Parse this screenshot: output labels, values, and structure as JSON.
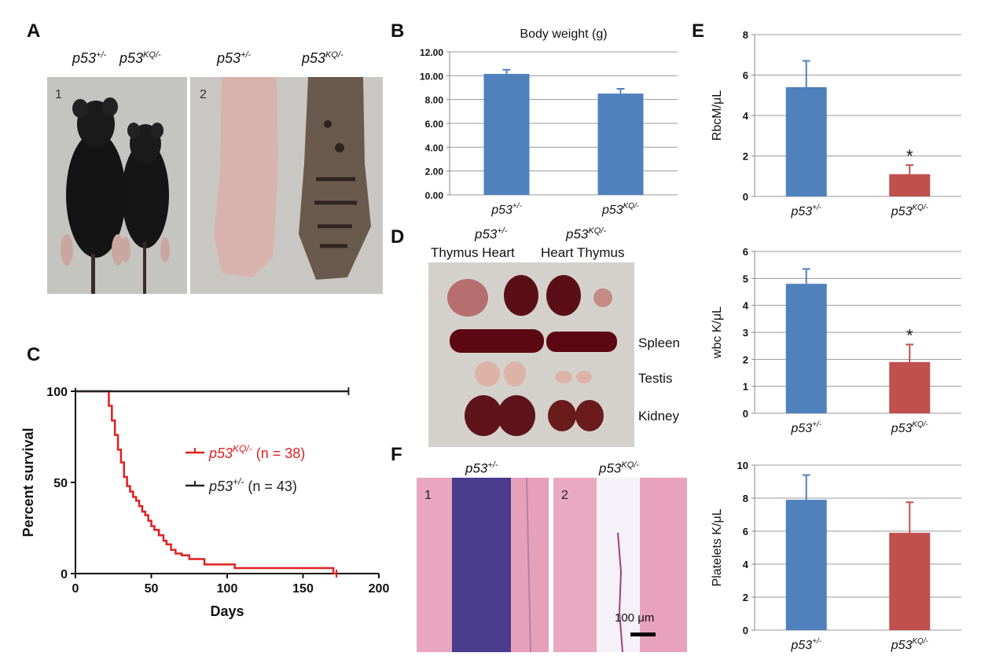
{
  "panels": {
    "A": "A",
    "B": "B",
    "C": "C",
    "D": "D",
    "E": "E",
    "F": "F"
  },
  "genotypes": {
    "wt": "p53",
    "wt_sup": "+/-",
    "ko": "p53",
    "ko_sup": "KQ/-"
  },
  "panelA": {
    "photo1_num": "1",
    "photo2_num": "2"
  },
  "panelD": {
    "col_left": "Thymus Heart",
    "col_right": "Heart Thymus",
    "rows": [
      "Spleen",
      "Testis",
      "Kidney"
    ]
  },
  "panelF": {
    "photo1_num": "1",
    "photo2_num": "2",
    "scalebar": "100 μm"
  },
  "colors": {
    "blue": "#4f81bd",
    "red": "#c0504d",
    "km_red": "#e02020",
    "km_black": "#222222"
  },
  "chart_data": [
    {
      "id": "B",
      "type": "bar",
      "title": "Body weight (g)",
      "categories": [
        "p53+/-",
        "p53KQ/-"
      ],
      "values": [
        10.15,
        8.5
      ],
      "errors": [
        0.35,
        0.4
      ],
      "ylim": [
        0,
        12
      ],
      "yticks": [
        "0.00",
        "2.00",
        "4.00",
        "6.00",
        "8.00",
        "10.00",
        "12.00"
      ],
      "grid": true
    },
    {
      "id": "C",
      "type": "line",
      "xlabel": "Days",
      "ylabel": "Percent survival",
      "xlim": [
        0,
        200
      ],
      "ylim": [
        0,
        100
      ],
      "xticks": [
        "0",
        "50",
        "100",
        "150",
        "200"
      ],
      "yticks": [
        "0",
        "50",
        "100"
      ],
      "legend_position": "center-right",
      "series": [
        {
          "name": "p53KQ/- (n = 38)",
          "color": "red",
          "x": [
            0,
            20,
            22,
            24,
            26,
            28,
            30,
            32,
            34,
            36,
            38,
            40,
            42,
            44,
            46,
            48,
            50,
            52,
            55,
            58,
            60,
            63,
            66,
            70,
            75,
            80,
            85,
            90,
            105,
            145,
            170,
            172
          ],
          "y": [
            100,
            100,
            92,
            84,
            76,
            68,
            61,
            53,
            48,
            45,
            42,
            40,
            37,
            34,
            32,
            29,
            26,
            24,
            21,
            18,
            16,
            13,
            11,
            10,
            8,
            8,
            5,
            5,
            3,
            3,
            0,
            0
          ]
        },
        {
          "name": "p53+/- (n = 43)",
          "color": "black",
          "x": [
            0,
            180
          ],
          "y": [
            100,
            100
          ]
        }
      ]
    },
    {
      "id": "E1",
      "type": "bar",
      "ylabel": "RbcM/μL",
      "categories": [
        "p53+/-",
        "p53KQ/-"
      ],
      "values": [
        5.4,
        1.1
      ],
      "errors": [
        1.3,
        0.45
      ],
      "ylim": [
        0,
        8
      ],
      "yticks": [
        "0",
        "2",
        "4",
        "6",
        "8"
      ],
      "annotation": "*"
    },
    {
      "id": "E2",
      "type": "bar",
      "ylabel": "wbc K/μL",
      "categories": [
        "p53+/-",
        "p53KQ/-"
      ],
      "values": [
        4.8,
        1.9
      ],
      "errors": [
        0.55,
        0.65
      ],
      "ylim": [
        0,
        6
      ],
      "yticks": [
        "0",
        "1",
        "2",
        "3",
        "4",
        "5",
        "6"
      ],
      "annotation": "*"
    },
    {
      "id": "E3",
      "type": "bar",
      "ylabel": "Platelets K/μL",
      "categories": [
        "p53+/-",
        "p53KQ/-"
      ],
      "values": [
        7.9,
        5.9
      ],
      "errors": [
        1.5,
        1.85
      ],
      "ylim": [
        0,
        10
      ],
      "yticks": [
        "0",
        "2",
        "4",
        "6",
        "8",
        "10"
      ]
    }
  ]
}
